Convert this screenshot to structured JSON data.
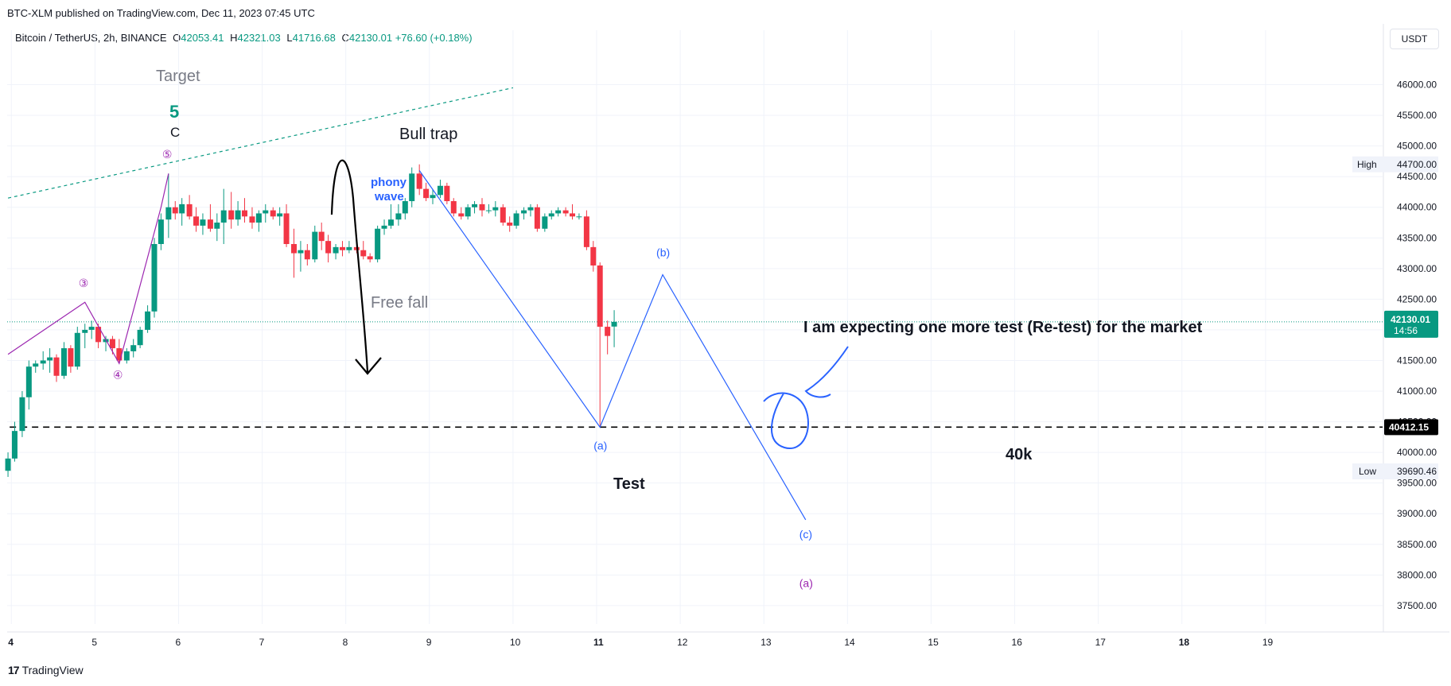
{
  "header": {
    "published": "BTC-XLM published on TradingView.com, Dec 11, 2023 07:45 UTC",
    "symbol": "Bitcoin / TetherUS, 2h, BINANCE",
    "open_label": "O",
    "open": "42053.41",
    "high_label": "H",
    "high": "42321.03",
    "low_label": "L",
    "low": "41716.68",
    "close_label": "C",
    "close": "42130.01",
    "change": "+76.60 (+0.18%)",
    "currency": "USDT"
  },
  "footer": {
    "brand": "TradingView",
    "brand_icon": "tradingview-logo-icon"
  },
  "colors": {
    "up": "#089981",
    "down": "#f23645",
    "wave_blue": "#2962ff",
    "wave_purple": "#9c27b0",
    "trend_green": "#089981",
    "grid": "#f0f3fa"
  },
  "chart_data": {
    "type": "candlestick",
    "title": "",
    "xlabel": "",
    "ylabel": "",
    "x_ticks": [
      "4",
      "5",
      "6",
      "7",
      "8",
      "9",
      "10",
      "11",
      "12",
      "13",
      "14",
      "15",
      "16",
      "17",
      "18",
      "19"
    ],
    "x_tick_days": [
      4,
      5,
      6,
      7,
      8,
      9,
      10,
      11,
      12,
      13,
      14,
      15,
      16,
      17,
      18,
      19
    ],
    "x_tick_bold": [
      "4",
      "11",
      "18"
    ],
    "y_ticks": [
      "37500.00",
      "38000.00",
      "38500.00",
      "39000.00",
      "39500.00",
      "40000.00",
      "40500.00",
      "41000.00",
      "41500.00",
      "42000.00",
      "42500.00",
      "43000.00",
      "43500.00",
      "44000.00",
      "44500.00",
      "45000.00",
      "45500.00",
      "46000.00"
    ],
    "y_tick_values": [
      37500,
      38000,
      38500,
      39000,
      39500,
      40000,
      40500,
      41000,
      41500,
      42000,
      42500,
      43000,
      43500,
      44000,
      44500,
      45000,
      45500,
      46000
    ],
    "ylim": [
      37200,
      46500
    ],
    "xlim": [
      3.95,
      20.4
    ],
    "grid": true,
    "price_labels": {
      "high_label": "High",
      "high_value": "44700.00",
      "low_label": "Low",
      "low_value": "39690.46",
      "last_value": "42130.01",
      "last_countdown": "14:56",
      "line_value": "40412.15"
    },
    "horizontal_line": {
      "value": 40412.15,
      "style": "dashed"
    },
    "candles": [
      {
        "t": 3.96,
        "o": 39700,
        "h": 40000,
        "l": 39600,
        "c": 39900
      },
      {
        "t": 4.04,
        "o": 39900,
        "h": 40500,
        "l": 39850,
        "c": 40350
      },
      {
        "t": 4.13,
        "o": 40350,
        "h": 41000,
        "l": 40250,
        "c": 40900
      },
      {
        "t": 4.21,
        "o": 40900,
        "h": 41500,
        "l": 40700,
        "c": 41400
      },
      {
        "t": 4.29,
        "o": 41400,
        "h": 41500,
        "l": 41300,
        "c": 41450
      },
      {
        "t": 4.38,
        "o": 41450,
        "h": 41650,
        "l": 41350,
        "c": 41500
      },
      {
        "t": 4.46,
        "o": 41500,
        "h": 41700,
        "l": 41300,
        "c": 41550
      },
      {
        "t": 4.54,
        "o": 41550,
        "h": 41600,
        "l": 41150,
        "c": 41250
      },
      {
        "t": 4.63,
        "o": 41250,
        "h": 41800,
        "l": 41200,
        "c": 41700
      },
      {
        "t": 4.71,
        "o": 41700,
        "h": 41750,
        "l": 41300,
        "c": 41400
      },
      {
        "t": 4.79,
        "o": 41400,
        "h": 42050,
        "l": 41350,
        "c": 41950
      },
      {
        "t": 4.88,
        "o": 41950,
        "h": 42100,
        "l": 41700,
        "c": 42000
      },
      {
        "t": 4.96,
        "o": 42000,
        "h": 42150,
        "l": 41850,
        "c": 42050
      },
      {
        "t": 5.04,
        "o": 42050,
        "h": 42100,
        "l": 41700,
        "c": 41800
      },
      {
        "t": 5.13,
        "o": 41800,
        "h": 41900,
        "l": 41650,
        "c": 41850
      },
      {
        "t": 5.21,
        "o": 41850,
        "h": 41900,
        "l": 41600,
        "c": 41700
      },
      {
        "t": 5.29,
        "o": 41700,
        "h": 41850,
        "l": 41450,
        "c": 41500
      },
      {
        "t": 5.38,
        "o": 41500,
        "h": 41700,
        "l": 41450,
        "c": 41650
      },
      {
        "t": 5.46,
        "o": 41650,
        "h": 41850,
        "l": 41550,
        "c": 41750
      },
      {
        "t": 5.54,
        "o": 41750,
        "h": 42050,
        "l": 41700,
        "c": 42000
      },
      {
        "t": 5.63,
        "o": 42000,
        "h": 42400,
        "l": 41950,
        "c": 42300
      },
      {
        "t": 5.71,
        "o": 42300,
        "h": 43500,
        "l": 42200,
        "c": 43400
      },
      {
        "t": 5.79,
        "o": 43400,
        "h": 43900,
        "l": 43300,
        "c": 43800
      },
      {
        "t": 5.88,
        "o": 43800,
        "h": 44550,
        "l": 43500,
        "c": 44000
      },
      {
        "t": 5.96,
        "o": 44000,
        "h": 44100,
        "l": 43800,
        "c": 43900
      },
      {
        "t": 6.04,
        "o": 43900,
        "h": 44150,
        "l": 43700,
        "c": 44050
      },
      {
        "t": 6.13,
        "o": 44050,
        "h": 44200,
        "l": 43800,
        "c": 43850
      },
      {
        "t": 6.21,
        "o": 43850,
        "h": 44000,
        "l": 43600,
        "c": 43700
      },
      {
        "t": 6.29,
        "o": 43700,
        "h": 43900,
        "l": 43550,
        "c": 43800
      },
      {
        "t": 6.38,
        "o": 43800,
        "h": 44050,
        "l": 43600,
        "c": 43650
      },
      {
        "t": 6.46,
        "o": 43650,
        "h": 43900,
        "l": 43450,
        "c": 43750
      },
      {
        "t": 6.54,
        "o": 43750,
        "h": 44300,
        "l": 43400,
        "c": 43950
      },
      {
        "t": 6.63,
        "o": 43950,
        "h": 44250,
        "l": 43650,
        "c": 43800
      },
      {
        "t": 6.71,
        "o": 43800,
        "h": 44100,
        "l": 43700,
        "c": 43950
      },
      {
        "t": 6.79,
        "o": 43950,
        "h": 44150,
        "l": 43750,
        "c": 43850
      },
      {
        "t": 6.88,
        "o": 43850,
        "h": 44000,
        "l": 43650,
        "c": 43750
      },
      {
        "t": 6.96,
        "o": 43750,
        "h": 43950,
        "l": 43600,
        "c": 43900
      },
      {
        "t": 7.04,
        "o": 43900,
        "h": 44050,
        "l": 43750,
        "c": 43950
      },
      {
        "t": 7.13,
        "o": 43950,
        "h": 44000,
        "l": 43800,
        "c": 43850
      },
      {
        "t": 7.21,
        "o": 43850,
        "h": 44000,
        "l": 43700,
        "c": 43900
      },
      {
        "t": 7.29,
        "o": 43900,
        "h": 44050,
        "l": 43350,
        "c": 43400
      },
      {
        "t": 7.38,
        "o": 43400,
        "h": 43650,
        "l": 42850,
        "c": 43250
      },
      {
        "t": 7.46,
        "o": 43250,
        "h": 43450,
        "l": 42950,
        "c": 43300
      },
      {
        "t": 7.54,
        "o": 43300,
        "h": 43400,
        "l": 43050,
        "c": 43150
      },
      {
        "t": 7.63,
        "o": 43150,
        "h": 43700,
        "l": 43100,
        "c": 43600
      },
      {
        "t": 7.71,
        "o": 43600,
        "h": 43750,
        "l": 43300,
        "c": 43450
      },
      {
        "t": 7.79,
        "o": 43450,
        "h": 43550,
        "l": 43100,
        "c": 43250
      },
      {
        "t": 7.88,
        "o": 43250,
        "h": 43400,
        "l": 43150,
        "c": 43350
      },
      {
        "t": 7.96,
        "o": 43350,
        "h": 43450,
        "l": 43200,
        "c": 43300
      },
      {
        "t": 8.04,
        "o": 43300,
        "h": 43450,
        "l": 43250,
        "c": 43350
      },
      {
        "t": 8.13,
        "o": 43350,
        "h": 43500,
        "l": 43250,
        "c": 43300
      },
      {
        "t": 8.21,
        "o": 43300,
        "h": 43450,
        "l": 43150,
        "c": 43200
      },
      {
        "t": 8.29,
        "o": 43200,
        "h": 43250,
        "l": 43100,
        "c": 43150
      },
      {
        "t": 8.38,
        "o": 43150,
        "h": 43700,
        "l": 43100,
        "c": 43650
      },
      {
        "t": 8.46,
        "o": 43650,
        "h": 43800,
        "l": 43550,
        "c": 43700
      },
      {
        "t": 8.54,
        "o": 43700,
        "h": 44050,
        "l": 43650,
        "c": 43800
      },
      {
        "t": 8.63,
        "o": 43800,
        "h": 44050,
        "l": 43700,
        "c": 43900
      },
      {
        "t": 8.71,
        "o": 43900,
        "h": 44150,
        "l": 43800,
        "c": 44100
      },
      {
        "t": 8.79,
        "o": 44100,
        "h": 44650,
        "l": 44000,
        "c": 44550
      },
      {
        "t": 8.88,
        "o": 44550,
        "h": 44700,
        "l": 44200,
        "c": 44300
      },
      {
        "t": 8.96,
        "o": 44300,
        "h": 44400,
        "l": 44100,
        "c": 44150
      },
      {
        "t": 9.04,
        "o": 44150,
        "h": 44300,
        "l": 44050,
        "c": 44200
      },
      {
        "t": 9.13,
        "o": 44200,
        "h": 44450,
        "l": 44150,
        "c": 44350
      },
      {
        "t": 9.21,
        "o": 44350,
        "h": 44400,
        "l": 44050,
        "c": 44100
      },
      {
        "t": 9.29,
        "o": 44100,
        "h": 44150,
        "l": 43850,
        "c": 43900
      },
      {
        "t": 9.38,
        "o": 43900,
        "h": 44000,
        "l": 43800,
        "c": 43850
      },
      {
        "t": 9.46,
        "o": 43850,
        "h": 44050,
        "l": 43800,
        "c": 44000
      },
      {
        "t": 9.54,
        "o": 44000,
        "h": 44100,
        "l": 43900,
        "c": 44050
      },
      {
        "t": 9.63,
        "o": 44050,
        "h": 44150,
        "l": 43850,
        "c": 43950
      },
      {
        "t": 9.71,
        "o": 43950,
        "h": 44050,
        "l": 43900,
        "c": 43950
      },
      {
        "t": 9.79,
        "o": 43950,
        "h": 44100,
        "l": 43850,
        "c": 44000
      },
      {
        "t": 9.88,
        "o": 44000,
        "h": 44050,
        "l": 43700,
        "c": 43750
      },
      {
        "t": 9.96,
        "o": 43750,
        "h": 43850,
        "l": 43600,
        "c": 43700
      },
      {
        "t": 10.04,
        "o": 43700,
        "h": 43950,
        "l": 43650,
        "c": 43900
      },
      {
        "t": 10.13,
        "o": 43900,
        "h": 44000,
        "l": 43800,
        "c": 43950
      },
      {
        "t": 10.21,
        "o": 43950,
        "h": 44050,
        "l": 43850,
        "c": 44000
      },
      {
        "t": 10.29,
        "o": 44000,
        "h": 44050,
        "l": 43600,
        "c": 43650
      },
      {
        "t": 10.38,
        "o": 43650,
        "h": 43900,
        "l": 43600,
        "c": 43850
      },
      {
        "t": 10.46,
        "o": 43850,
        "h": 43950,
        "l": 43800,
        "c": 43900
      },
      {
        "t": 10.54,
        "o": 43900,
        "h": 44000,
        "l": 43850,
        "c": 43950
      },
      {
        "t": 10.63,
        "o": 43950,
        "h": 44000,
        "l": 43850,
        "c": 43900
      },
      {
        "t": 10.71,
        "o": 43900,
        "h": 44050,
        "l": 43800,
        "c": 43850
      },
      {
        "t": 10.79,
        "o": 43850,
        "h": 43900,
        "l": 43800,
        "c": 43850
      },
      {
        "t": 10.88,
        "o": 43850,
        "h": 43950,
        "l": 43300,
        "c": 43350
      },
      {
        "t": 10.96,
        "o": 43350,
        "h": 43450,
        "l": 42950,
        "c": 43050
      },
      {
        "t": 11.04,
        "o": 43050,
        "h": 43100,
        "l": 40412,
        "c": 42050
      },
      {
        "t": 11.13,
        "o": 42050,
        "h": 42150,
        "l": 41600,
        "c": 41900
      },
      {
        "t": 11.21,
        "o": 42053.41,
        "h": 42321.03,
        "l": 41716.68,
        "c": 42130.01
      }
    ],
    "wave_lines": [
      {
        "name": "",
        "color": "purple",
        "points": [
          [
            3.96,
            41600
          ],
          [
            4.88,
            42450
          ],
          [
            5.29,
            41450
          ],
          [
            5.79,
            44000
          ],
          [
            5.88,
            44550
          ]
        ]
      },
      {
        "name": "",
        "color": "blue",
        "points": [
          [
            8.88,
            44600
          ],
          [
            11.04,
            40412
          ],
          [
            11.79,
            42900
          ],
          [
            13.5,
            38900
          ]
        ]
      }
    ],
    "trend_line": {
      "style": "dashed",
      "points": [
        [
          3.96,
          44150
        ],
        [
          10.0,
          45950
        ]
      ]
    },
    "wave_labels": [
      {
        "text": "③",
        "t": 4.88,
        "y": 42700,
        "color": "purple"
      },
      {
        "text": "④",
        "t": 5.29,
        "y": 41200,
        "color": "purple"
      },
      {
        "text": "⑤",
        "t": 5.88,
        "y": 44800,
        "color": "purple"
      },
      {
        "text": "(a)",
        "t": 11.04,
        "y": 40050,
        "color": "blue"
      },
      {
        "text": "(b)",
        "t": 11.79,
        "y": 43200,
        "color": "blue"
      },
      {
        "text": "(c)",
        "t": 13.5,
        "y": 38600,
        "color": "blue"
      },
      {
        "text": "(a)",
        "t": 13.5,
        "y": 37800,
        "color": "purple"
      }
    ],
    "annotations": {
      "target": "Target",
      "wave5": "5",
      "waveC": "C",
      "bull_trap": "Bull trap",
      "phony": "phony",
      "wave": "wave",
      "free_fall": "Free fall",
      "test": "Test",
      "forty_k": "40k",
      "expectation": "I am expecting one more test (Re-test) for the market"
    }
  }
}
